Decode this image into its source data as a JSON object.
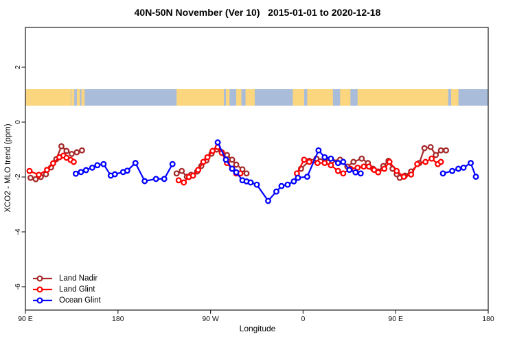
{
  "title": "40N-50N November (Ver 10)   2015-01-01 to 2020-12-18",
  "colors": {
    "land_nadir": "#a52a2a",
    "land_glint": "#ff0000",
    "ocean_glint": "#0000ff",
    "strip_land": "#fbd67e",
    "strip_ocean": "#a9bddb",
    "frame": "#2b2b2b",
    "text": "#000000"
  },
  "legend": {
    "entries": [
      {
        "label": "Land Nadir",
        "color_key": "land_nadir"
      },
      {
        "label": "Land Glint",
        "color_key": "land_glint"
      },
      {
        "label": "Ocean Glint",
        "color_key": "ocean_glint"
      }
    ]
  },
  "chart_data": {
    "type": "line",
    "title": "40N-50N November (Ver 10)   2015-01-01 to 2020-12-18",
    "xlabel": "Longitude",
    "ylabel": "XCO2 - MLO trend (ppm)",
    "x_axis": {
      "note": "x is degrees east of 90E, wrapping the globe 1.25 times (90E-180-90W-0-90E-180)",
      "domain": [
        0,
        450
      ],
      "tick_positions": [
        0,
        90,
        180,
        270,
        360,
        450
      ],
      "tick_labels": [
        "90 E",
        "180",
        "90 W",
        "0",
        "90 E",
        "180"
      ]
    },
    "y_axis": {
      "range_ppm": [
        -6.9,
        3.4
      ],
      "tick_values": [
        2,
        0,
        -2,
        -4,
        -6
      ],
      "tick_labels": [
        "2",
        "0",
        "-2",
        "-4",
        "-6"
      ]
    },
    "grid": false,
    "legend_position": "bottom-left",
    "map_strip": {
      "description": "world-map band for latitude 40N-50N drawn across the plot",
      "top_ppm": 1.2,
      "bottom_ppm": 0.6,
      "land_segments_deg": [
        [
          0,
          44
        ],
        [
          44.5,
          47.5
        ],
        [
          50,
          53
        ],
        [
          54.5,
          57.5
        ],
        [
          147,
          193
        ],
        [
          195,
          198.5
        ],
        [
          205,
          210
        ],
        [
          214,
          223
        ],
        [
          260,
          271
        ],
        [
          274,
          299
        ],
        [
          306,
          316
        ],
        [
          323,
          411
        ],
        [
          414,
          421
        ]
      ]
    },
    "series": [
      {
        "name": "Land Nadir",
        "color_key": "land_nadir",
        "marker": "open-circle",
        "segments": [
          [
            [
              5,
              -2.03
            ],
            [
              10,
              -2.08
            ],
            [
              15,
              -2.0
            ],
            [
              20,
              -1.9
            ],
            [
              25,
              -1.65
            ],
            [
              30,
              -1.35
            ],
            [
              35,
              -0.88
            ],
            [
              40,
              -1.05
            ],
            [
              45,
              -1.16
            ],
            [
              50,
              -1.1
            ],
            [
              55,
              -1.03
            ]
          ],
          [
            [
              147,
              -1.87
            ],
            [
              152,
              -1.78
            ],
            [
              157,
              -1.99
            ],
            [
              161,
              -1.92
            ],
            [
              167,
              -1.8
            ],
            [
              171,
              -1.6
            ],
            [
              176,
              -1.4
            ],
            [
              181,
              -1.15
            ],
            [
              186,
              -1.0
            ],
            [
              191,
              -1.1
            ],
            [
              196,
              -1.2
            ],
            [
              201,
              -1.37
            ],
            [
              205,
              -1.55
            ],
            [
              211,
              -1.72
            ],
            [
              215,
              -1.87
            ]
          ],
          [
            [
              268,
              -1.7
            ],
            [
              276,
              -1.41
            ],
            [
              283,
              -1.33
            ],
            [
              291,
              -1.37
            ],
            [
              298,
              -1.41
            ],
            [
              306,
              -1.37
            ],
            [
              313,
              -1.62
            ],
            [
              319,
              -1.45
            ],
            [
              327,
              -1.33
            ],
            [
              333,
              -1.49
            ],
            [
              338,
              -1.7
            ],
            [
              343,
              -1.8
            ],
            [
              348,
              -1.6
            ],
            [
              353,
              -1.41
            ],
            [
              357,
              -1.7
            ],
            [
              361,
              -1.9
            ],
            [
              364,
              -2.03
            ],
            [
              369,
              -1.95
            ],
            [
              375,
              -1.8
            ],
            [
              383,
              -1.49
            ],
            [
              388,
              -0.95
            ],
            [
              394,
              -0.91
            ],
            [
              399,
              -1.2
            ],
            [
              404,
              -1.03
            ],
            [
              409,
              -1.03
            ]
          ]
        ]
      },
      {
        "name": "Land Glint",
        "color_key": "land_glint",
        "marker": "open-circle",
        "segments": [
          [
            [
              4,
              -1.78
            ],
            [
              13,
              -1.92
            ],
            [
              21,
              -1.74
            ],
            [
              27,
              -1.5
            ],
            [
              33,
              -1.28
            ],
            [
              37,
              -1.22
            ],
            [
              40,
              -1.3
            ],
            [
              44,
              -1.38
            ],
            [
              47,
              -1.45
            ]
          ],
          [
            [
              149,
              -2.12
            ],
            [
              154,
              -2.2
            ],
            [
              159,
              -2.0
            ],
            [
              163,
              -1.95
            ],
            [
              168,
              -1.74
            ],
            [
              173,
              -1.45
            ],
            [
              177,
              -1.28
            ],
            [
              182,
              -1.05
            ],
            [
              187,
              -0.91
            ],
            [
              191,
              -1.12
            ],
            [
              196,
              -1.49
            ],
            [
              201,
              -1.7
            ],
            [
              205,
              -1.87
            ],
            [
              209,
              -1.87
            ]
          ],
          [
            [
              264,
              -1.87
            ],
            [
              271,
              -1.37
            ],
            [
              276,
              -1.45
            ],
            [
              284,
              -1.49
            ],
            [
              291,
              -1.49
            ],
            [
              297,
              -1.57
            ],
            [
              304,
              -1.78
            ],
            [
              309,
              -1.87
            ],
            [
              316,
              -1.7
            ],
            [
              323,
              -1.66
            ],
            [
              329,
              -1.62
            ],
            [
              334,
              -1.62
            ],
            [
              339,
              -1.74
            ],
            [
              343,
              -1.83
            ],
            [
              349,
              -1.7
            ],
            [
              354,
              -1.45
            ],
            [
              361,
              -1.78
            ],
            [
              368,
              -1.99
            ],
            [
              375,
              -1.91
            ],
            [
              381,
              -1.53
            ],
            [
              389,
              -1.45
            ],
            [
              395,
              -1.33
            ],
            [
              401,
              -1.53
            ],
            [
              404,
              -1.45
            ]
          ]
        ]
      },
      {
        "name": "Ocean Glint",
        "color_key": "ocean_glint",
        "marker": "open-circle",
        "segments": [
          [
            [
              49,
              -1.88
            ],
            [
              54,
              -1.82
            ],
            [
              59,
              -1.75
            ],
            [
              65,
              -1.66
            ],
            [
              70,
              -1.57
            ],
            [
              76,
              -1.53
            ],
            [
              83,
              -1.95
            ],
            [
              87,
              -1.9
            ],
            [
              95,
              -1.82
            ],
            [
              99,
              -1.77
            ],
            [
              107,
              -1.49
            ],
            [
              116,
              -2.15
            ],
            [
              127,
              -2.07
            ],
            [
              135,
              -2.07
            ],
            [
              143,
              -1.53
            ]
          ],
          [
            [
              187,
              -0.74
            ],
            [
              195,
              -1.37
            ],
            [
              201,
              -1.7
            ],
            [
              205,
              -1.83
            ],
            [
              211,
              -2.12
            ],
            [
              215,
              -2.16
            ],
            [
              219,
              -2.2
            ],
            [
              225,
              -2.28
            ],
            [
              236,
              -2.87
            ],
            [
              244,
              -2.53
            ],
            [
              249,
              -2.33
            ],
            [
              255,
              -2.28
            ],
            [
              261,
              -2.16
            ],
            [
              265,
              -2.03
            ],
            [
              274,
              -1.99
            ],
            [
              285,
              -1.03
            ],
            [
              291,
              -1.28
            ],
            [
              297,
              -1.33
            ],
            [
              304,
              -1.49
            ],
            [
              309,
              -1.45
            ],
            [
              315,
              -1.74
            ],
            [
              321,
              -1.83
            ],
            [
              326,
              -1.87
            ]
          ],
          [
            [
              406,
              -1.87
            ],
            [
              415,
              -1.78
            ],
            [
              421,
              -1.7
            ],
            [
              426,
              -1.66
            ],
            [
              433,
              -1.49
            ],
            [
              438,
              -1.99
            ]
          ]
        ]
      }
    ]
  }
}
